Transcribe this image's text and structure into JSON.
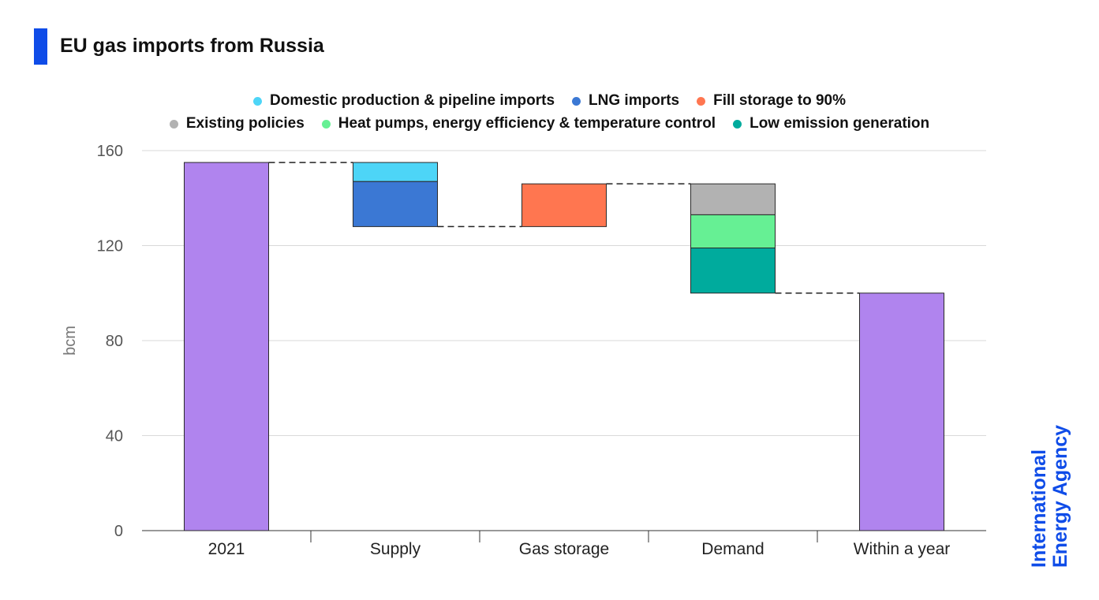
{
  "title": "EU gas imports from Russia",
  "legend": [
    {
      "label": "Domestic production & pipeline imports",
      "color": "#4dd5f7"
    },
    {
      "label": "LNG imports",
      "color": "#3b78d4"
    },
    {
      "label": "Fill storage to 90%",
      "color": "#ff7650"
    },
    {
      "label": "Existing policies",
      "color": "#b2b2b2"
    },
    {
      "label": "Heat pumps, energy efficiency & temperature control",
      "color": "#66f094"
    },
    {
      "label": "Low emission generation",
      "color": "#00ab9d"
    }
  ],
  "watermark": {
    "line1": "International",
    "line2": "Energy Agency"
  },
  "chart_data": {
    "type": "bar",
    "subtype": "waterfall",
    "ylabel": "bcm",
    "xlabel": "",
    "ylim": [
      0,
      160
    ],
    "yticks": [
      0,
      40,
      80,
      120,
      160
    ],
    "grid": true,
    "legend_position": "top",
    "categories": [
      "2021",
      "Supply",
      "Gas storage",
      "Demand",
      "Within a year"
    ],
    "total_color": "#b084ee",
    "bars": [
      {
        "category": "2021",
        "segments": [
          {
            "series": "Total",
            "from": 0,
            "to": 155,
            "color": "#b084ee"
          }
        ]
      },
      {
        "category": "Supply",
        "segments": [
          {
            "series": "LNG imports",
            "from": 128,
            "to": 147,
            "color": "#3b78d4"
          },
          {
            "series": "Domestic production & pipeline imports",
            "from": 147,
            "to": 155,
            "color": "#4dd5f7"
          }
        ]
      },
      {
        "category": "Gas storage",
        "segments": [
          {
            "series": "Fill storage to 90%",
            "from": 128,
            "to": 146,
            "color": "#ff7650"
          }
        ]
      },
      {
        "category": "Demand",
        "segments": [
          {
            "series": "Low emission generation",
            "from": 100,
            "to": 119,
            "color": "#00ab9d"
          },
          {
            "series": "Heat pumps, energy efficiency & temperature control",
            "from": 119,
            "to": 133,
            "color": "#66f094"
          },
          {
            "series": "Existing policies",
            "from": 133,
            "to": 146,
            "color": "#b2b2b2"
          }
        ]
      },
      {
        "category": "Within a year",
        "segments": [
          {
            "series": "Total",
            "from": 0,
            "to": 100,
            "color": "#b084ee"
          }
        ]
      }
    ],
    "connectors": [
      {
        "from_bar": 0,
        "to_bar": 1,
        "value": 155
      },
      {
        "from_bar": 1,
        "to_bar": 2,
        "value": 128
      },
      {
        "from_bar": 2,
        "to_bar": 3,
        "value": 146
      },
      {
        "from_bar": 3,
        "to_bar": 4,
        "value": 100
      }
    ]
  }
}
